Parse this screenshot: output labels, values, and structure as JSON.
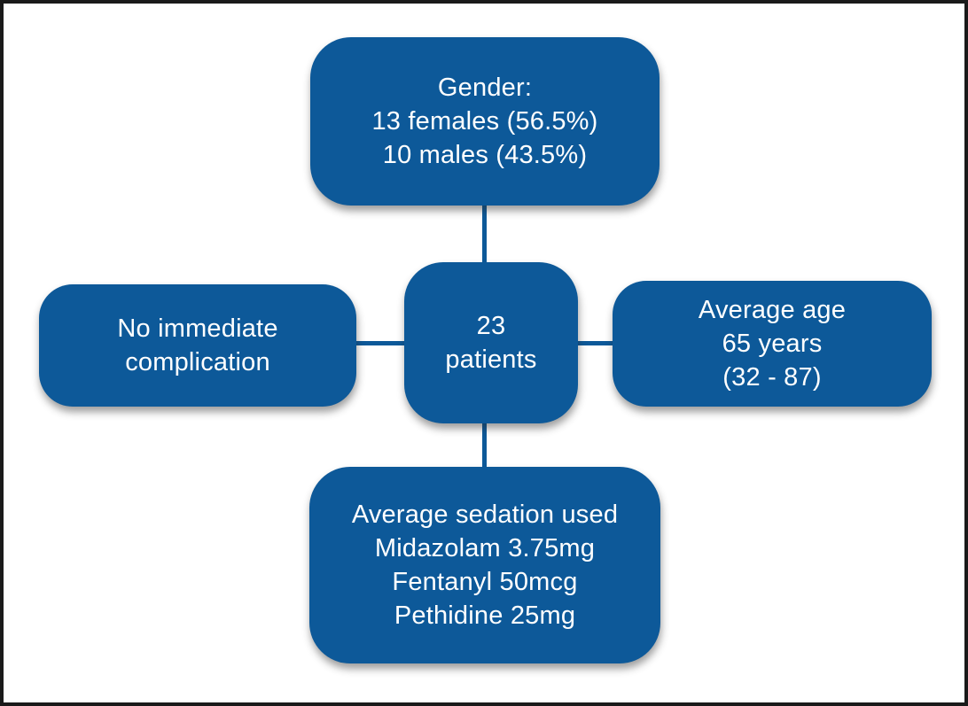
{
  "figure": {
    "background_color": "#ffffff",
    "frame_color": "#1a1a1a",
    "box_color": "#0d5999",
    "connector_color": "#0d5999",
    "text_color": "#ffffff"
  },
  "boxes": {
    "gender": {
      "lines": [
        "Gender:",
        "13 females (56.5%)",
        "10 males (43.5%)"
      ]
    },
    "patients": {
      "lines": [
        "23",
        "patients"
      ]
    },
    "complication": {
      "lines": [
        "No immediate",
        "complication"
      ]
    },
    "age": {
      "lines": [
        "Average age",
        "65 years",
        "(32 - 87)"
      ]
    },
    "sedation": {
      "lines": [
        "Average sedation used",
        "Midazolam 3.75mg",
        "Fentanyl 50mcg",
        "Pethidine 25mg"
      ]
    }
  }
}
